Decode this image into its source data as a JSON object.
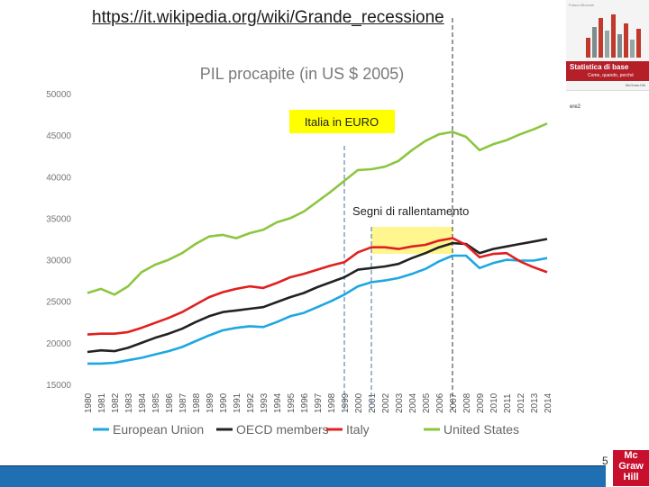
{
  "header": {
    "url": "https://it.wikipedia.org/wiki/Grande_recessione"
  },
  "book": {
    "title": "Statistica di base",
    "subtitle": "Come, quando, perché",
    "top_text": "Franco Bhoovel",
    "publisher": "McGraw-Hill",
    "tag": "ere2"
  },
  "footer": {
    "page_number": "5",
    "logo_lines": [
      "Mc",
      "Graw",
      "Hill"
    ],
    "bar_color": "#1f6fb2"
  },
  "chart_data": {
    "type": "line",
    "title": "PIL procapite (in US $ 2005)",
    "xlabel": "",
    "ylabel": "",
    "ylim": [
      15000,
      50000
    ],
    "yticks": [
      15000,
      20000,
      25000,
      30000,
      35000,
      40000,
      45000,
      50000
    ],
    "x": [
      1980,
      1981,
      1982,
      1983,
      1984,
      1985,
      1986,
      1987,
      1988,
      1989,
      1990,
      1991,
      1992,
      1993,
      1994,
      1995,
      1996,
      1997,
      1998,
      1999,
      2000,
      2001,
      2002,
      2003,
      2004,
      2005,
      2006,
      2007,
      2008,
      2009,
      2010,
      2011,
      2012,
      2013,
      2014
    ],
    "series": [
      {
        "name": "European Union",
        "color": "#1ea7e0",
        "values": [
          17500,
          17500,
          17600,
          17900,
          18200,
          18600,
          19000,
          19500,
          20200,
          20900,
          21500,
          21800,
          22000,
          21900,
          22500,
          23200,
          23600,
          24300,
          25000,
          25800,
          26800,
          27300,
          27500,
          27800,
          28300,
          28900,
          29800,
          30500,
          30500,
          29000,
          29600,
          30000,
          29900,
          29900,
          30200
        ]
      },
      {
        "name": "OECD members",
        "color": "#222222",
        "values": [
          18900,
          19100,
          19000,
          19400,
          20000,
          20600,
          21100,
          21700,
          22500,
          23200,
          23700,
          23900,
          24100,
          24300,
          24900,
          25500,
          26000,
          26700,
          27300,
          27900,
          28800,
          29000,
          29200,
          29500,
          30200,
          30800,
          31500,
          32000,
          31900,
          30800,
          31300,
          31600,
          31900,
          32200,
          32500
        ]
      },
      {
        "name": "Italy",
        "color": "#e02020",
        "values": [
          21000,
          21100,
          21100,
          21300,
          21800,
          22400,
          23000,
          23700,
          24600,
          25500,
          26100,
          26500,
          26800,
          26600,
          27200,
          27900,
          28300,
          28800,
          29300,
          29700,
          30900,
          31500,
          31500,
          31300,
          31600,
          31800,
          32300,
          32600,
          31800,
          30300,
          30700,
          30800,
          29800,
          29100,
          28500
        ]
      },
      {
        "name": "United States",
        "color": "#8cc63f",
        "values": [
          26000,
          26500,
          25800,
          26800,
          28500,
          29400,
          30000,
          30800,
          31900,
          32800,
          33000,
          32600,
          33200,
          33600,
          34500,
          35000,
          35800,
          37000,
          38200,
          39500,
          40800,
          40900,
          41200,
          41900,
          43200,
          44300,
          45100,
          45400,
          44800,
          43200,
          43900,
          44400,
          45100,
          45700,
          46400
        ]
      }
    ],
    "annotations": [
      {
        "label": "Italia in EURO",
        "year": 1999
      },
      {
        "label": "Segni di rallentamento",
        "year_start": 2001,
        "year_end": 2007
      }
    ],
    "legend_position": "bottom"
  }
}
